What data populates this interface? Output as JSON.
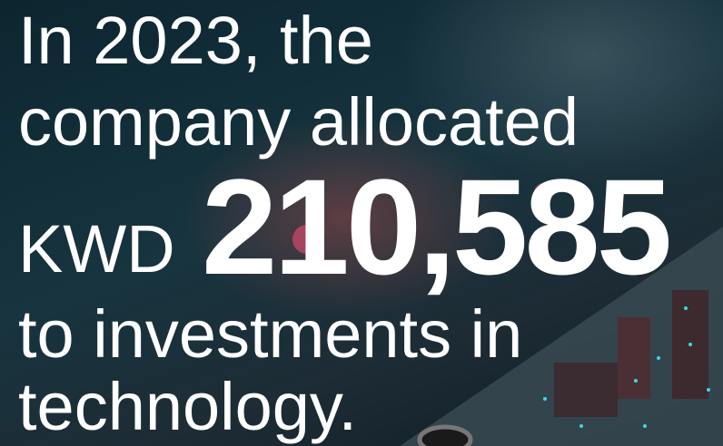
{
  "lines": [
    "In 2023, the",
    "company allocated",
    "to investments in",
    "technology."
  ],
  "currency": "KWD",
  "amount": "210,585"
}
